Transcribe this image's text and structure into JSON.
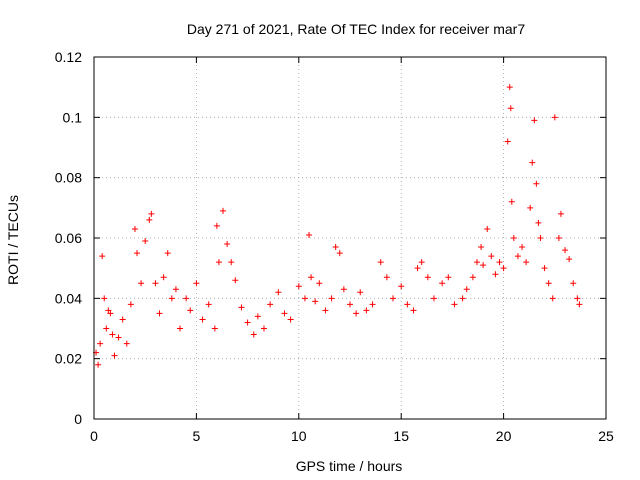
{
  "chart_data": {
    "type": "scatter",
    "title": "Day 271 of 2021, Rate Of TEC Index for receiver mar7",
    "xlabel": "GPS time / hours",
    "ylabel": "ROTI / TECUs",
    "xlim": [
      0,
      25
    ],
    "ylim": [
      0,
      0.12
    ],
    "xticks": [
      0,
      5,
      10,
      15,
      20,
      25
    ],
    "xtick_labels": [
      "0",
      "5",
      "10",
      "15",
      "20",
      "25"
    ],
    "yticks": [
      0,
      0.02,
      0.04,
      0.06,
      0.08,
      0.1,
      0.12
    ],
    "ytick_labels": [
      "0",
      "0.02",
      "0.04",
      "0.06",
      "0.08",
      "0.1",
      "0.12"
    ],
    "grid": true,
    "marker": "+",
    "color": "#ff0000",
    "series": [
      {
        "name": "ROTI",
        "points": [
          [
            0.1,
            0.022
          ],
          [
            0.2,
            0.018
          ],
          [
            0.3,
            0.025
          ],
          [
            0.4,
            0.054
          ],
          [
            0.5,
            0.04
          ],
          [
            0.6,
            0.03
          ],
          [
            0.7,
            0.036
          ],
          [
            0.8,
            0.035
          ],
          [
            0.9,
            0.028
          ],
          [
            1.0,
            0.021
          ],
          [
            1.2,
            0.027
          ],
          [
            1.4,
            0.033
          ],
          [
            1.6,
            0.025
          ],
          [
            1.8,
            0.038
          ],
          [
            2.0,
            0.063
          ],
          [
            2.1,
            0.055
          ],
          [
            2.3,
            0.045
          ],
          [
            2.5,
            0.059
          ],
          [
            2.7,
            0.066
          ],
          [
            2.8,
            0.068
          ],
          [
            3.0,
            0.045
          ],
          [
            3.2,
            0.035
          ],
          [
            3.4,
            0.047
          ],
          [
            3.6,
            0.055
          ],
          [
            3.8,
            0.04
          ],
          [
            4.0,
            0.043
          ],
          [
            4.2,
            0.03
          ],
          [
            4.5,
            0.04
          ],
          [
            4.7,
            0.036
          ],
          [
            5.0,
            0.045
          ],
          [
            5.3,
            0.033
          ],
          [
            5.6,
            0.038
          ],
          [
            5.9,
            0.03
          ],
          [
            6.0,
            0.064
          ],
          [
            6.1,
            0.052
          ],
          [
            6.3,
            0.069
          ],
          [
            6.5,
            0.058
          ],
          [
            6.7,
            0.052
          ],
          [
            6.9,
            0.046
          ],
          [
            7.2,
            0.037
          ],
          [
            7.5,
            0.032
          ],
          [
            7.8,
            0.028
          ],
          [
            8.0,
            0.034
          ],
          [
            8.3,
            0.03
          ],
          [
            8.6,
            0.038
          ],
          [
            9.0,
            0.042
          ],
          [
            9.3,
            0.035
          ],
          [
            9.6,
            0.033
          ],
          [
            10.0,
            0.044
          ],
          [
            10.3,
            0.04
          ],
          [
            10.5,
            0.061
          ],
          [
            10.6,
            0.047
          ],
          [
            10.8,
            0.039
          ],
          [
            11.0,
            0.045
          ],
          [
            11.3,
            0.036
          ],
          [
            11.6,
            0.04
          ],
          [
            11.8,
            0.057
          ],
          [
            12.0,
            0.055
          ],
          [
            12.2,
            0.043
          ],
          [
            12.5,
            0.038
          ],
          [
            12.8,
            0.035
          ],
          [
            13.0,
            0.042
          ],
          [
            13.3,
            0.036
          ],
          [
            13.6,
            0.038
          ],
          [
            14.0,
            0.052
          ],
          [
            14.3,
            0.047
          ],
          [
            14.6,
            0.04
          ],
          [
            15.0,
            0.044
          ],
          [
            15.3,
            0.038
          ],
          [
            15.6,
            0.036
          ],
          [
            15.8,
            0.05
          ],
          [
            16.0,
            0.052
          ],
          [
            16.3,
            0.047
          ],
          [
            16.6,
            0.04
          ],
          [
            17.0,
            0.045
          ],
          [
            17.3,
            0.047
          ],
          [
            17.6,
            0.038
          ],
          [
            18.0,
            0.04
          ],
          [
            18.2,
            0.043
          ],
          [
            18.5,
            0.047
          ],
          [
            18.7,
            0.052
          ],
          [
            18.9,
            0.057
          ],
          [
            19.0,
            0.051
          ],
          [
            19.2,
            0.063
          ],
          [
            19.4,
            0.054
          ],
          [
            19.6,
            0.048
          ],
          [
            19.8,
            0.052
          ],
          [
            20.0,
            0.05
          ],
          [
            20.2,
            0.092
          ],
          [
            20.3,
            0.11
          ],
          [
            20.35,
            0.103
          ],
          [
            20.4,
            0.072
          ],
          [
            20.5,
            0.06
          ],
          [
            20.7,
            0.054
          ],
          [
            20.9,
            0.057
          ],
          [
            21.1,
            0.052
          ],
          [
            21.3,
            0.07
          ],
          [
            21.4,
            0.085
          ],
          [
            21.5,
            0.099
          ],
          [
            21.6,
            0.078
          ],
          [
            21.7,
            0.065
          ],
          [
            21.8,
            0.06
          ],
          [
            22.0,
            0.05
          ],
          [
            22.2,
            0.045
          ],
          [
            22.4,
            0.04
          ],
          [
            22.5,
            0.1
          ],
          [
            22.7,
            0.06
          ],
          [
            22.8,
            0.068
          ],
          [
            23.0,
            0.056
          ],
          [
            23.2,
            0.053
          ],
          [
            23.4,
            0.045
          ],
          [
            23.6,
            0.04
          ],
          [
            23.7,
            0.038
          ]
        ]
      }
    ]
  }
}
